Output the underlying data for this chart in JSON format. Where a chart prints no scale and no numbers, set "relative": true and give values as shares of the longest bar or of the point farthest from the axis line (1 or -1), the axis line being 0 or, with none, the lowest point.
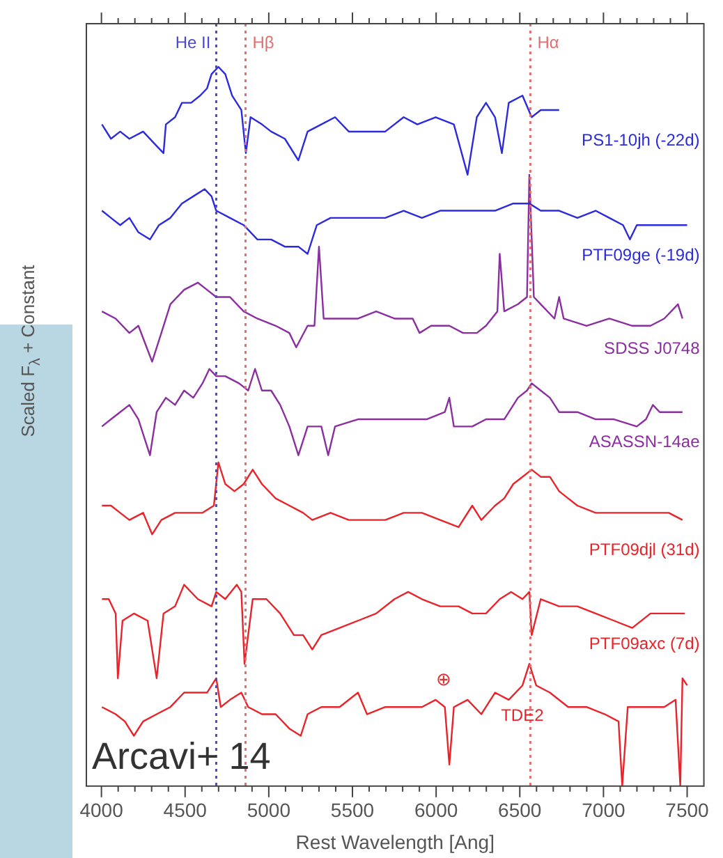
{
  "chart_data": {
    "type": "line",
    "relative": true,
    "xlabel": "Rest Wavelength [Ang]",
    "ylabel": "Scaled F$_{λ}$ + Constant",
    "xlim": [
      3910,
      7600
    ],
    "xticks": [
      4000,
      {
        "value": 4100,
        "label": null
      },
      {
        "value": 4200,
        "label": null
      },
      {
        "value": 4300,
        "label": null
      },
      {
        "value": 4400,
        "label": null
      },
      4500,
      {
        "value": 4600,
        "label": null
      },
      {
        "value": 4700,
        "label": null
      },
      {
        "value": 4800,
        "label": null
      },
      {
        "value": 4900,
        "label": null
      },
      5000,
      {
        "value": 5100,
        "label": null
      },
      {
        "value": 5200,
        "label": null
      },
      {
        "value": 5300,
        "label": null
      },
      {
        "value": 5400,
        "label": null
      },
      5500,
      {
        "value": 5600,
        "label": null
      },
      {
        "value": 5700,
        "label": null
      },
      {
        "value": 5800,
        "label": null
      },
      {
        "value": 5900,
        "label": null
      },
      6000,
      {
        "value": 6100,
        "label": null
      },
      {
        "value": 6200,
        "label": null
      },
      {
        "value": 6300,
        "label": null
      },
      {
        "value": 6400,
        "label": null
      },
      6500,
      {
        "value": 6600,
        "label": null
      },
      {
        "value": 6700,
        "label": null
      },
      {
        "value": 6800,
        "label": null
      },
      {
        "value": 6900,
        "label": null
      },
      7000,
      {
        "value": 7100,
        "label": null
      },
      {
        "value": 7200,
        "label": null
      },
      {
        "value": 7300,
        "label": null
      },
      {
        "value": 7400,
        "label": null
      },
      7500
    ],
    "grid": false,
    "legend": false,
    "marker": "none",
    "line_style": "solid",
    "series": [
      {
        "name": "PS1-10jh (-22d)",
        "color": "#2b2bdd",
        "x": [
          4003,
          4057,
          4112,
          4167,
          4249,
          4330,
          4371,
          4385,
          4440,
          4481,
          4536,
          4590,
          4631,
          4658,
          4699,
          4740,
          4781,
          4836,
          4863,
          4891,
          4959,
          5014,
          5096,
          5177,
          5232,
          5314,
          5396,
          5478,
          5587,
          5696,
          5806,
          5888,
          5997,
          6106,
          6188,
          6243,
          6298,
          6352,
          6393,
          6434,
          6516,
          6571,
          6625,
          6735
        ],
        "values": [
          0.92,
          0.9,
          0.91,
          0.9,
          0.91,
          0.89,
          0.88,
          0.92,
          0.93,
          0.95,
          0.95,
          0.96,
          0.97,
          0.99,
          1.0,
          0.99,
          0.96,
          0.94,
          0.88,
          0.93,
          0.92,
          0.91,
          0.9,
          0.87,
          0.91,
          0.92,
          0.93,
          0.91,
          0.91,
          0.91,
          0.93,
          0.92,
          0.93,
          0.92,
          0.85,
          0.93,
          0.95,
          0.93,
          0.88,
          0.95,
          0.96,
          0.93,
          0.94,
          0.94
        ]
      },
      {
        "name": "PTF09ge (-19d)",
        "color": "#2b2bdd",
        "x": [
          4003,
          4057,
          4112,
          4167,
          4221,
          4290,
          4344,
          4412,
          4481,
          4549,
          4617,
          4658,
          4686,
          4768,
          4850,
          4932,
          5014,
          5096,
          5177,
          5232,
          5287,
          5369,
          5478,
          5587,
          5696,
          5806,
          5915,
          6024,
          6134,
          6243,
          6352,
          6461,
          6557,
          6625,
          6735,
          6844,
          6953,
          7035,
          7117,
          7158,
          7199,
          7309,
          7418,
          7500
        ],
        "values": [
          0.8,
          0.79,
          0.78,
          0.79,
          0.77,
          0.76,
          0.78,
          0.79,
          0.81,
          0.82,
          0.83,
          0.82,
          0.8,
          0.79,
          0.78,
          0.76,
          0.76,
          0.75,
          0.75,
          0.74,
          0.78,
          0.79,
          0.79,
          0.79,
          0.79,
          0.8,
          0.79,
          0.8,
          0.8,
          0.8,
          0.8,
          0.81,
          0.81,
          0.8,
          0.8,
          0.79,
          0.8,
          0.79,
          0.78,
          0.76,
          0.78,
          0.78,
          0.78,
          0.78
        ]
      },
      {
        "name": "SDSS J0748",
        "color": "#8a2ea0",
        "x": [
          4003,
          4085,
          4167,
          4221,
          4303,
          4358,
          4412,
          4494,
          4576,
          4631,
          4686,
          4768,
          4850,
          4932,
          5041,
          5123,
          5164,
          5232,
          5273,
          5300,
          5328,
          5423,
          5533,
          5642,
          5751,
          5860,
          5901,
          5970,
          6079,
          6161,
          6243,
          6298,
          6366,
          6380,
          6407,
          6489,
          6543,
          6557,
          6584,
          6625,
          6707,
          6735,
          6762,
          6899,
          7035,
          7172,
          7281,
          7363,
          7445,
          7472
        ],
        "values": [
          0.66,
          0.65,
          0.63,
          0.64,
          0.59,
          0.63,
          0.67,
          0.69,
          0.7,
          0.69,
          0.68,
          0.68,
          0.66,
          0.65,
          0.64,
          0.63,
          0.61,
          0.64,
          0.64,
          0.75,
          0.65,
          0.65,
          0.65,
          0.66,
          0.65,
          0.65,
          0.63,
          0.64,
          0.64,
          0.63,
          0.63,
          0.64,
          0.66,
          0.74,
          0.66,
          0.67,
          0.68,
          0.85,
          0.68,
          0.67,
          0.65,
          0.68,
          0.65,
          0.64,
          0.65,
          0.64,
          0.64,
          0.65,
          0.67,
          0.65
        ]
      },
      {
        "name": "ASASSN-14ae",
        "color": "#8a2ea0",
        "x": [
          4003,
          4057,
          4112,
          4167,
          4221,
          4290,
          4330,
          4385,
          4440,
          4494,
          4549,
          4604,
          4645,
          4686,
          4740,
          4822,
          4877,
          4918,
          4959,
          5014,
          5068,
          5123,
          5177,
          5232,
          5314,
          5355,
          5396,
          5533,
          5669,
          5806,
          5943,
          6052,
          6079,
          6106,
          6216,
          6298,
          6407,
          6489,
          6543,
          6571,
          6625,
          6680,
          6735,
          6844,
          6953,
          7063,
          7199,
          7254,
          7295,
          7336,
          7472
        ],
        "values": [
          0.5,
          0.51,
          0.52,
          0.53,
          0.51,
          0.46,
          0.52,
          0.54,
          0.53,
          0.55,
          0.54,
          0.56,
          0.58,
          0.57,
          0.57,
          0.56,
          0.55,
          0.58,
          0.55,
          0.55,
          0.53,
          0.5,
          0.46,
          0.5,
          0.5,
          0.46,
          0.5,
          0.51,
          0.51,
          0.51,
          0.51,
          0.52,
          0.54,
          0.5,
          0.5,
          0.51,
          0.51,
          0.54,
          0.55,
          0.56,
          0.55,
          0.54,
          0.52,
          0.52,
          0.51,
          0.51,
          0.5,
          0.51,
          0.53,
          0.52,
          0.52
        ]
      },
      {
        "name": "PTF09djl (31d)",
        "color": "#e8242a",
        "x": [
          4003,
          4057,
          4112,
          4167,
          4249,
          4303,
          4358,
          4440,
          4522,
          4604,
          4672,
          4699,
          4740,
          4795,
          4850,
          4904,
          4959,
          5041,
          5123,
          5205,
          5260,
          5369,
          5478,
          5587,
          5696,
          5806,
          5915,
          6024,
          6134,
          6216,
          6270,
          6352,
          6407,
          6461,
          6516,
          6571,
          6625,
          6680,
          6735,
          6789,
          6844,
          6953,
          7063,
          7172,
          7281,
          7390,
          7472
        ],
        "values": [
          0.39,
          0.39,
          0.38,
          0.37,
          0.38,
          0.35,
          0.37,
          0.38,
          0.38,
          0.38,
          0.39,
          0.45,
          0.42,
          0.41,
          0.42,
          0.44,
          0.42,
          0.4,
          0.39,
          0.38,
          0.37,
          0.38,
          0.37,
          0.37,
          0.37,
          0.38,
          0.38,
          0.37,
          0.36,
          0.39,
          0.37,
          0.39,
          0.4,
          0.42,
          0.43,
          0.44,
          0.43,
          0.43,
          0.41,
          0.4,
          0.39,
          0.38,
          0.38,
          0.38,
          0.38,
          0.38,
          0.37
        ]
      },
      {
        "name": "PTF09axc (7d)",
        "color": "#e8242a",
        "x": [
          4003,
          4044,
          4085,
          4098,
          4126,
          4194,
          4276,
          4330,
          4371,
          4440,
          4494,
          4576,
          4658,
          4686,
          4740,
          4809,
          4836,
          4855,
          4904,
          4986,
          5068,
          5150,
          5205,
          5260,
          5314,
          5423,
          5533,
          5642,
          5751,
          5833,
          5915,
          6024,
          6134,
          6216,
          6298,
          6380,
          6448,
          6516,
          6557,
          6571,
          6625,
          6735,
          6844,
          6953,
          7063,
          7172,
          7281,
          7363,
          7445,
          7486
        ],
        "values": [
          0.26,
          0.26,
          0.24,
          0.15,
          0.23,
          0.24,
          0.23,
          0.15,
          0.24,
          0.25,
          0.28,
          0.26,
          0.25,
          0.27,
          0.26,
          0.28,
          0.27,
          0.17,
          0.26,
          0.26,
          0.24,
          0.21,
          0.21,
          0.19,
          0.21,
          0.22,
          0.23,
          0.24,
          0.26,
          0.27,
          0.26,
          0.25,
          0.25,
          0.24,
          0.24,
          0.26,
          0.27,
          0.26,
          0.27,
          0.21,
          0.26,
          0.25,
          0.25,
          0.24,
          0.23,
          0.22,
          0.24,
          0.24,
          0.24,
          0.24
        ]
      },
      {
        "name": "TDE2",
        "color": "#e8242a",
        "x": [
          4003,
          4085,
          4140,
          4194,
          4249,
          4330,
          4412,
          4494,
          4576,
          4631,
          4686,
          4713,
          4768,
          4836,
          4877,
          4959,
          5041,
          5123,
          5191,
          5232,
          5314,
          5423,
          5533,
          5587,
          5696,
          5806,
          5915,
          5997,
          6052,
          6079,
          6106,
          6188,
          6270,
          6352,
          6434,
          6516,
          6557,
          6598,
          6680,
          6789,
          6899,
          7008,
          7090,
          7112,
          7145,
          7254,
          7363,
          7431,
          7459,
          7472,
          7500
        ],
        "values": [
          0.11,
          0.1,
          0.09,
          0.07,
          0.09,
          0.1,
          0.11,
          0.13,
          0.13,
          0.13,
          0.15,
          0.11,
          0.12,
          0.13,
          0.11,
          0.1,
          0.1,
          0.08,
          0.07,
          0.1,
          0.11,
          0.11,
          0.13,
          0.1,
          0.11,
          0.11,
          0.11,
          0.12,
          0.11,
          0.03,
          0.11,
          0.12,
          0.1,
          0.13,
          0.12,
          0.14,
          0.17,
          0.14,
          0.13,
          0.11,
          0.11,
          0.1,
          0.09,
          0.0,
          0.11,
          0.11,
          0.11,
          0.12,
          0.0,
          0.15,
          0.14
        ]
      }
    ],
    "ref_lines": [
      {
        "axis": "x",
        "value": 4686,
        "label": "He II",
        "color": "#4b4bc8",
        "line_style": "dotted"
      },
      {
        "axis": "x",
        "value": 4861,
        "label": "Hβ",
        "color": "#e07070",
        "line_style": "dotted"
      },
      {
        "axis": "x",
        "value": 6563,
        "label": "Hα",
        "color": "#e07070",
        "line_style": "dotted"
      }
    ],
    "annotations": [
      "⊕",
      "Arcavi+ 14"
    ]
  }
}
